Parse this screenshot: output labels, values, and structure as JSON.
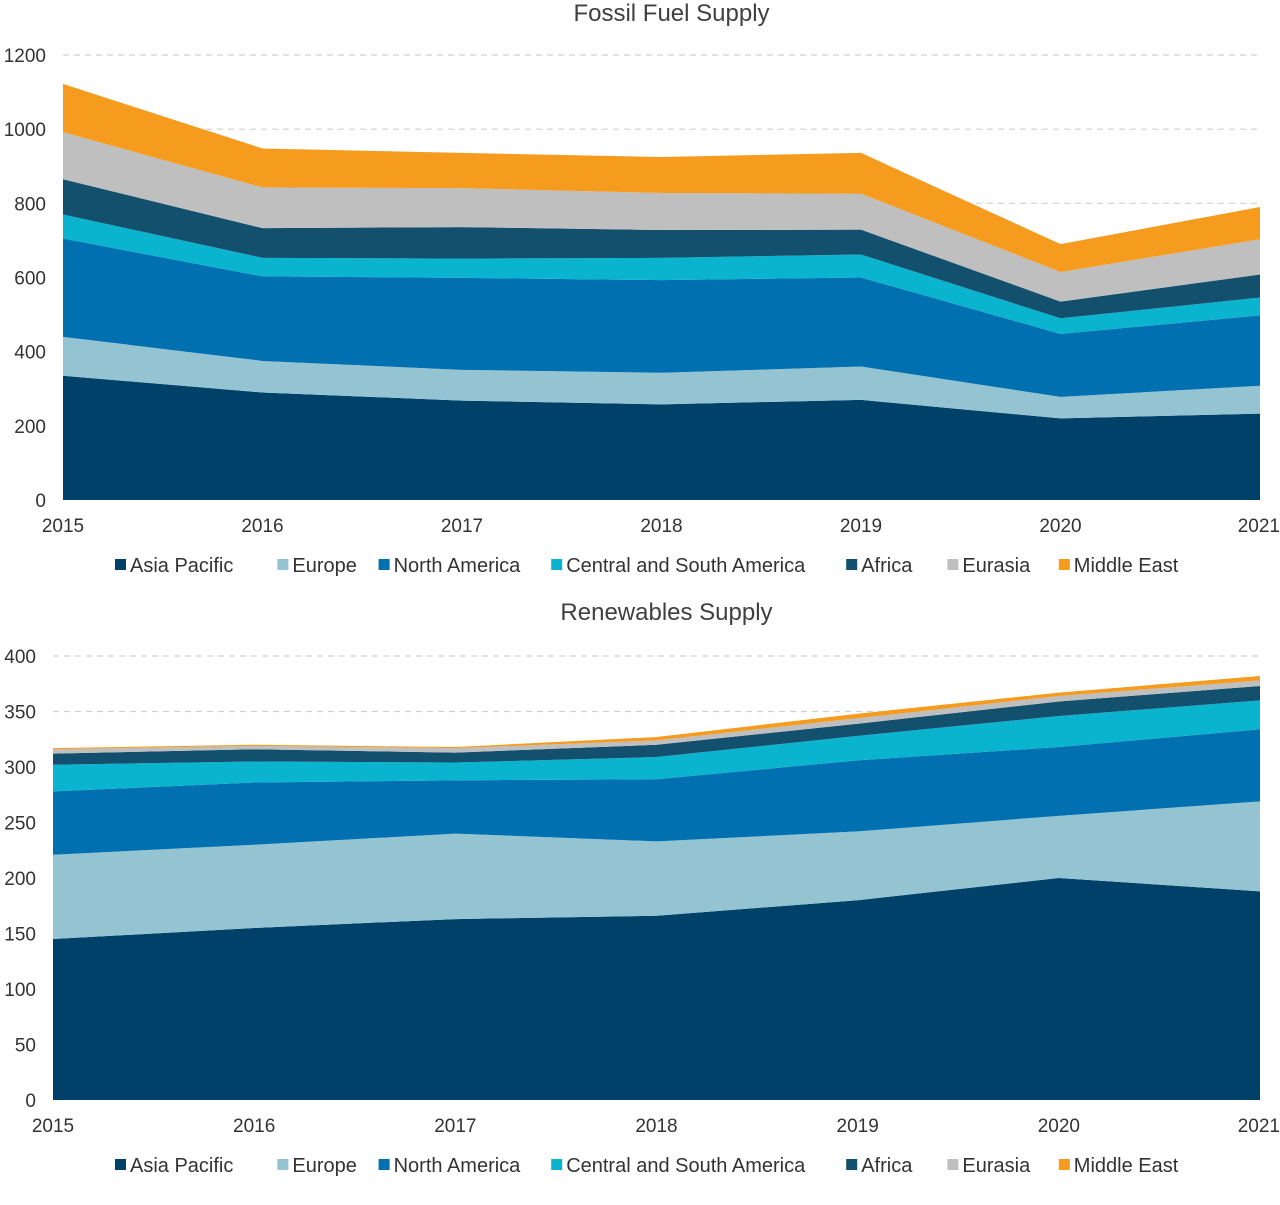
{
  "chart_data": [
    {
      "type": "area",
      "stacked": true,
      "title": "Fossil Fuel Supply",
      "x": [
        "2015",
        "2016",
        "2017",
        "2018",
        "2019",
        "2020",
        "2021"
      ],
      "ylim": [
        0,
        1200
      ],
      "yticks": [
        0,
        200,
        400,
        600,
        800,
        1000,
        1200
      ],
      "grid": true,
      "legend_position": "bottom",
      "series": [
        {
          "name": "Asia Pacific",
          "color": "#00416A",
          "values": [
            335,
            290,
            268,
            258,
            270,
            220,
            233
          ]
        },
        {
          "name": "Europe",
          "color": "#94C4D2",
          "values": [
            105,
            85,
            83,
            85,
            90,
            58,
            75
          ]
        },
        {
          "name": "North America",
          "color": "#0070B0",
          "values": [
            265,
            228,
            248,
            250,
            240,
            170,
            190
          ]
        },
        {
          "name": "Central and South America",
          "color": "#0AB4CF",
          "values": [
            65,
            50,
            52,
            60,
            62,
            42,
            48
          ]
        },
        {
          "name": "Africa",
          "color": "#13506E",
          "values": [
            95,
            80,
            85,
            75,
            67,
            45,
            62
          ]
        },
        {
          "name": "Eurasia",
          "color": "#BFBFBF",
          "values": [
            127,
            110,
            105,
            100,
            97,
            80,
            95
          ]
        },
        {
          "name": "Middle East",
          "color": "#F59B1E",
          "values": [
            130,
            105,
            95,
            97,
            110,
            75,
            87
          ]
        }
      ]
    },
    {
      "type": "area",
      "stacked": true,
      "title": "Renewables Supply",
      "x": [
        "2015",
        "2016",
        "2017",
        "2018",
        "2019",
        "2020",
        "2021"
      ],
      "ylim": [
        0,
        400
      ],
      "yticks": [
        0,
        50,
        100,
        150,
        200,
        250,
        300,
        350,
        400
      ],
      "grid": true,
      "legend_position": "bottom",
      "series": [
        {
          "name": "Asia Pacific",
          "color": "#00416A",
          "values": [
            145,
            155,
            163,
            166,
            180,
            200,
            188
          ]
        },
        {
          "name": "Europe",
          "color": "#94C4D2",
          "values": [
            76,
            75,
            77,
            67,
            62,
            56,
            81
          ]
        },
        {
          "name": "North America",
          "color": "#0070B0",
          "values": [
            57,
            56,
            48,
            56,
            64,
            62,
            65
          ]
        },
        {
          "name": "Central and South America",
          "color": "#0AB4CF",
          "values": [
            24,
            19,
            16,
            20,
            22,
            28,
            26
          ]
        },
        {
          "name": "Africa",
          "color": "#13506E",
          "values": [
            10,
            11,
            9,
            11,
            11,
            13,
            13
          ]
        },
        {
          "name": "Eurasia",
          "color": "#BFBFBF",
          "values": [
            4,
            3,
            4,
            4,
            5,
            5,
            5
          ]
        },
        {
          "name": "Middle East",
          "color": "#F59B1E",
          "values": [
            1,
            1,
            1,
            3,
            4,
            3,
            4
          ]
        }
      ]
    }
  ]
}
